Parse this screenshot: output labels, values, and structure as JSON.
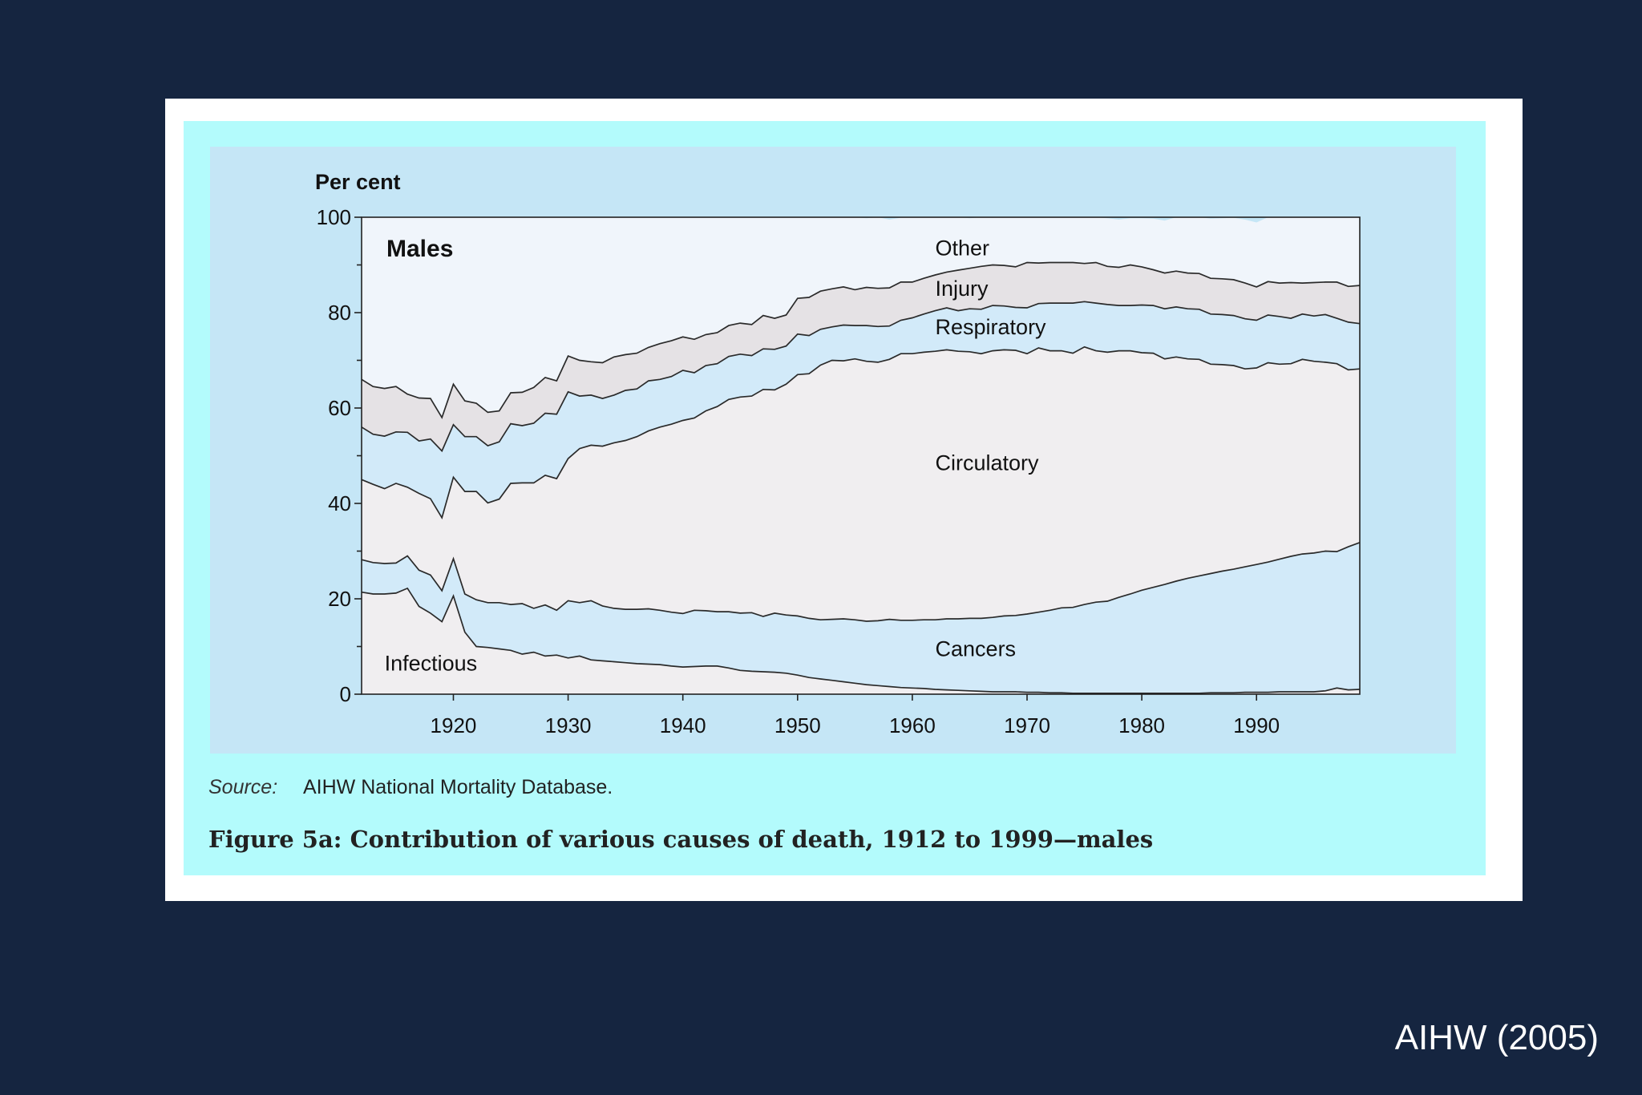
{
  "slide": {
    "credit": "AIHW (2005)"
  },
  "figure": {
    "source_label": "Source:",
    "source_text": "AIHW National Mortality Database.",
    "caption": "Figure 5a: Contribution of various causes of death, 1912 to 1999—males"
  },
  "chart_data": {
    "type": "area",
    "stacked": true,
    "panel_label": "Males",
    "ylabel": "Per cent",
    "xlabel": "",
    "xlim": [
      1912,
      1999
    ],
    "ylim": [
      0,
      100
    ],
    "x_ticks": [
      1920,
      1930,
      1940,
      1950,
      1960,
      1970,
      1980,
      1990
    ],
    "y_ticks": [
      0,
      20,
      40,
      60,
      80,
      100
    ],
    "note": "",
    "x": [
      1912,
      1913,
      1914,
      1915,
      1916,
      1917,
      1918,
      1919,
      1920,
      1921,
      1922,
      1923,
      1924,
      1925,
      1926,
      1927,
      1928,
      1929,
      1930,
      1931,
      1932,
      1933,
      1934,
      1935,
      1936,
      1937,
      1938,
      1939,
      1940,
      1941,
      1942,
      1943,
      1944,
      1945,
      1946,
      1947,
      1948,
      1949,
      1950,
      1951,
      1952,
      1953,
      1954,
      1955,
      1956,
      1957,
      1958,
      1959,
      1960,
      1961,
      1962,
      1963,
      1964,
      1965,
      1966,
      1967,
      1968,
      1969,
      1970,
      1971,
      1972,
      1973,
      1974,
      1975,
      1976,
      1977,
      1978,
      1979,
      1980,
      1981,
      1982,
      1983,
      1984,
      1985,
      1986,
      1987,
      1988,
      1989,
      1990,
      1991,
      1992,
      1993,
      1994,
      1995,
      1996,
      1997,
      1998,
      1999
    ],
    "series": [
      {
        "name": "Infectious",
        "values": [
          21.4,
          21.0,
          21.0,
          21.2,
          22.2,
          18.4,
          17.0,
          15.2,
          20.6,
          13.0,
          10.0,
          9.8,
          9.5,
          9.2,
          8.4,
          8.8,
          8.0,
          8.2,
          7.6,
          8.0,
          7.2,
          7.0,
          6.8,
          6.6,
          6.4,
          6.3,
          6.2,
          5.9,
          5.7,
          5.8,
          5.9,
          5.9,
          5.5,
          5.0,
          4.8,
          4.7,
          4.6,
          4.4,
          4.0,
          3.5,
          3.2,
          2.9,
          2.6,
          2.3,
          2.0,
          1.8,
          1.6,
          1.4,
          1.3,
          1.2,
          1.0,
          0.9,
          0.8,
          0.7,
          0.6,
          0.5,
          0.5,
          0.5,
          0.4,
          0.4,
          0.3,
          0.3,
          0.2,
          0.2,
          0.2,
          0.2,
          0.2,
          0.2,
          0.2,
          0.2,
          0.2,
          0.2,
          0.2,
          0.2,
          0.3,
          0.3,
          0.3,
          0.4,
          0.4,
          0.4,
          0.5,
          0.5,
          0.5,
          0.5,
          0.7,
          1.3,
          0.9,
          1.0
        ]
      },
      {
        "name": "Cancers",
        "values": [
          6.8,
          6.6,
          6.4,
          6.3,
          6.8,
          7.6,
          8.0,
          6.5,
          7.8,
          8.0,
          9.8,
          9.4,
          9.7,
          9.6,
          10.6,
          9.2,
          10.7,
          9.4,
          12.0,
          11.2,
          12.4,
          11.5,
          11.2,
          11.2,
          11.4,
          11.6,
          11.4,
          11.3,
          11.2,
          11.8,
          11.6,
          11.4,
          11.8,
          12.0,
          12.3,
          11.6,
          12.4,
          12.2,
          12.4,
          12.4,
          12.4,
          12.8,
          13.2,
          13.3,
          13.3,
          13.6,
          14.1,
          14.1,
          14.2,
          14.4,
          14.6,
          14.9,
          15.0,
          15.2,
          15.3,
          15.6,
          15.9,
          16.0,
          16.4,
          16.8,
          17.3,
          17.8,
          18.0,
          18.6,
          19.1,
          19.3,
          20.1,
          20.8,
          21.6,
          22.2,
          22.8,
          23.5,
          24.1,
          24.6,
          25.0,
          25.5,
          25.9,
          26.3,
          26.8,
          27.3,
          27.8,
          28.4,
          28.9,
          29.1,
          29.3,
          28.6,
          30.0,
          30.8
        ]
      },
      {
        "name": "Circulatory",
        "values": [
          16.8,
          16.4,
          15.7,
          16.7,
          14.4,
          16.1,
          16.0,
          15.3,
          17.1,
          21.5,
          22.7,
          20.9,
          21.7,
          25.4,
          25.3,
          26.3,
          27.2,
          27.6,
          29.8,
          32.3,
          32.6,
          33.5,
          34.7,
          35.4,
          36.2,
          37.3,
          38.4,
          39.4,
          40.5,
          40.3,
          41.9,
          43.0,
          44.5,
          45.3,
          45.4,
          47.6,
          46.8,
          48.4,
          50.6,
          51.3,
          53.4,
          54.3,
          54.1,
          54.7,
          54.5,
          54.2,
          54.5,
          55.9,
          55.9,
          56.1,
          56.3,
          56.4,
          56.1,
          55.9,
          55.5,
          55.9,
          55.8,
          55.6,
          54.6,
          55.4,
          54.4,
          53.9,
          53.3,
          54.0,
          52.7,
          52.2,
          51.7,
          51.0,
          49.8,
          49.1,
          47.3,
          47.0,
          46.0,
          45.4,
          43.9,
          43.3,
          42.7,
          41.5,
          41.2,
          41.8,
          40.9,
          40.4,
          40.8,
          40.2,
          39.6,
          39.4,
          37.1,
          36.4
        ]
      },
      {
        "name": "Respiratory",
        "values": [
          11.0,
          10.5,
          11.0,
          10.8,
          11.5,
          11.0,
          12.5,
          14.0,
          11.0,
          11.5,
          11.5,
          12.0,
          12.0,
          12.5,
          12.0,
          12.5,
          13.0,
          13.5,
          14.0,
          11.0,
          10.5,
          10.0,
          10.0,
          10.5,
          10.0,
          10.5,
          10.0,
          10.0,
          10.5,
          9.5,
          9.5,
          9.0,
          9.0,
          9.0,
          8.5,
          8.5,
          8.5,
          8.0,
          8.5,
          8.0,
          7.5,
          7.0,
          7.5,
          7.0,
          7.5,
          7.5,
          7.0,
          7.0,
          7.5,
          8.0,
          8.5,
          8.8,
          8.5,
          9.0,
          9.3,
          9.5,
          9.2,
          9.0,
          9.6,
          9.3,
          10.0,
          10.0,
          10.5,
          9.5,
          10.0,
          10.0,
          9.5,
          9.5,
          10.0,
          10.0,
          10.5,
          10.5,
          10.5,
          10.5,
          10.5,
          10.5,
          10.5,
          10.5,
          10.0,
          10.0,
          10.0,
          9.5,
          9.5,
          9.5,
          10.0,
          9.5,
          10.0,
          9.5
        ]
      },
      {
        "name": "Injury",
        "values": [
          10.0,
          10.0,
          10.0,
          9.5,
          8.0,
          9.0,
          8.5,
          7.0,
          8.5,
          7.5,
          7.0,
          7.0,
          6.5,
          6.5,
          7.0,
          7.5,
          7.5,
          7.0,
          7.5,
          7.5,
          7.0,
          7.5,
          8.0,
          7.5,
          7.5,
          7.0,
          7.5,
          7.5,
          7.0,
          7.0,
          6.5,
          6.5,
          6.5,
          6.5,
          6.5,
          7.0,
          6.5,
          6.5,
          7.5,
          8.0,
          8.0,
          8.0,
          8.0,
          7.5,
          8.0,
          8.0,
          8.0,
          8.0,
          7.5,
          7.5,
          7.5,
          7.5,
          8.5,
          8.5,
          9.0,
          8.5,
          8.5,
          8.5,
          9.5,
          8.5,
          8.5,
          8.5,
          8.5,
          8.0,
          8.5,
          8.0,
          8.0,
          8.5,
          8.0,
          7.5,
          7.5,
          7.5,
          7.5,
          7.5,
          7.5,
          7.5,
          7.5,
          7.5,
          7.0,
          7.0,
          7.0,
          7.5,
          6.5,
          7.0,
          6.8,
          7.6,
          7.5,
          8.0
        ]
      },
      {
        "name": "Other",
        "values": [
          34.0,
          35.5,
          35.9,
          35.5,
          37.1,
          37.9,
          38.0,
          42.0,
          35.0,
          38.5,
          39.0,
          41.7,
          42.6,
          40.8,
          40.7,
          40.7,
          38.6,
          38.3,
          34.6,
          33.5,
          34.3,
          34.5,
          33.3,
          33.2,
          33.0,
          31.8,
          31.6,
          31.2,
          30.3,
          31.4,
          30.6,
          30.5,
          29.9,
          28.7,
          27.2,
          26.1,
          25.3,
          24.8,
          20.6,
          19.0,
          18.0,
          17.0,
          16.4,
          15.2,
          14.5,
          15.0,
          14.3,
          13.5,
          13.6,
          13.1,
          12.5,
          11.5,
          11.1,
          10.5,
          10.3,
          9.9,
          10.1,
          10.6,
          10.4,
          10.1,
          10.8,
          10.9,
          9.5,
          9.7,
          9.5,
          10.1,
          10.0,
          9.8,
          10.2,
          10.7,
          11.0,
          11.5,
          11.7,
          12.0,
          12.5,
          12.7,
          13.0,
          13.3,
          13.5,
          13.5,
          14.0,
          13.6,
          14.3,
          14.2,
          13.6,
          13.9,
          14.5,
          16.7
        ]
      }
    ],
    "series_labels": [
      "Infectious",
      "Cancers",
      "Circulatory",
      "Respiratory",
      "Injury",
      "Other"
    ]
  }
}
